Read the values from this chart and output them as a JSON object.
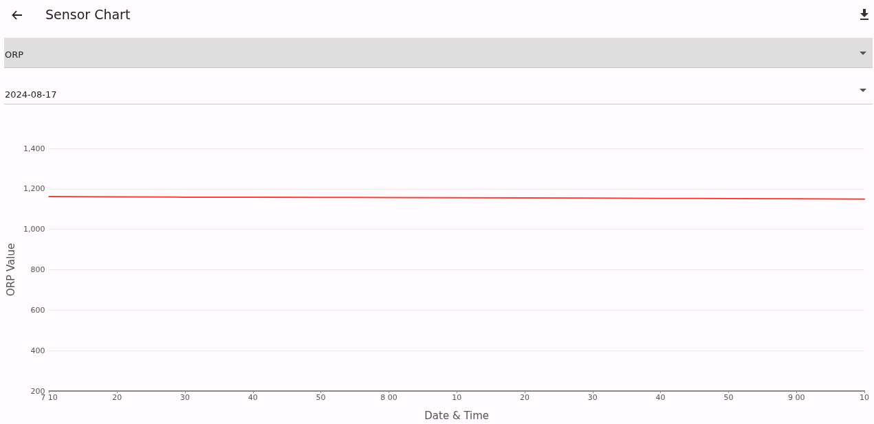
{
  "chart_data": {
    "type": "line",
    "title": "Sensor Chart",
    "annotations": [
      "ORP",
      "2024-08-17"
    ],
    "xlabel": "Date & Time",
    "ylabel": "ORP Value",
    "categories": [
      "7 10",
      "20",
      "30",
      "40",
      "50",
      "8 00",
      "10",
      "20",
      "30",
      "40",
      "50",
      "9 00",
      "10"
    ],
    "series": [
      {
        "color": "#f44336",
        "values": [
          1162,
          1160,
          1159,
          1159,
          1158,
          1157,
          1156,
          1155,
          1154,
          1153,
          1152,
          1151,
          1149
        ]
      }
    ],
    "ylim": [
      200,
      1400
    ],
    "yticks": [
      {
        "value": 200,
        "label": "200"
      },
      {
        "value": 400,
        "label": "400"
      },
      {
        "value": 600,
        "label": "600"
      },
      {
        "value": 800,
        "label": "800"
      },
      {
        "value": 1000,
        "label": "1,000"
      },
      {
        "value": 1200,
        "label": "1,200"
      },
      {
        "value": 1400,
        "label": "1,400"
      }
    ],
    "grid": "y",
    "marker": "none",
    "line_style": "solid"
  }
}
